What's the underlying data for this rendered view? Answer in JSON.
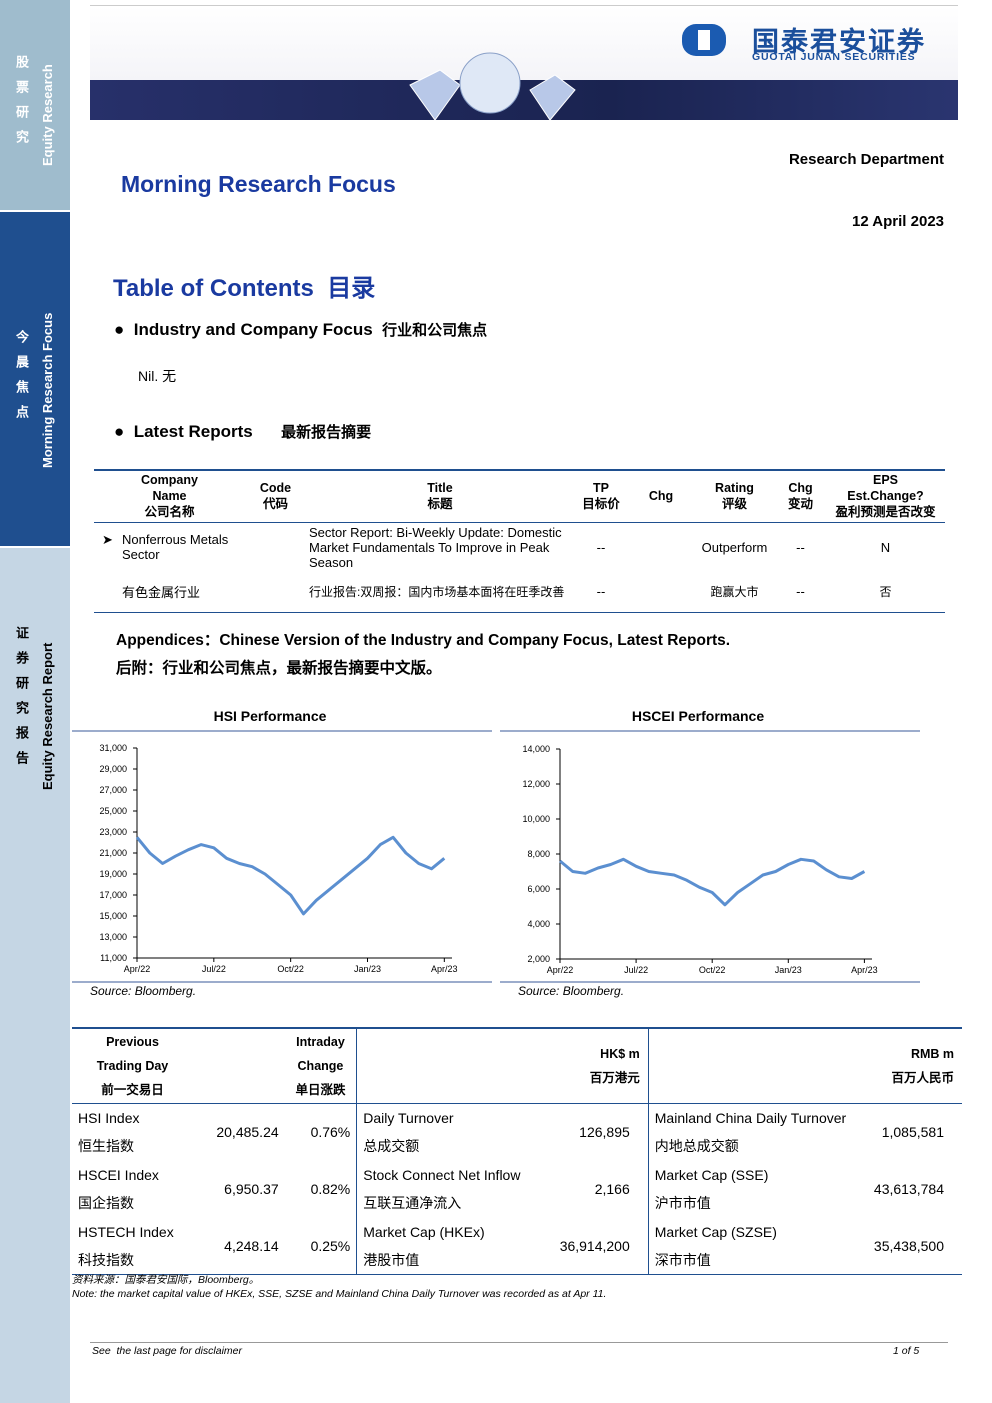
{
  "sidebar": {
    "top_cn": "股票研究",
    "top_en": "Equity Research",
    "mid_cn": "今晨焦点",
    "mid_en": "Morning Research Focus",
    "bottom_cn": "证券研究报告",
    "bottom_en": "Equity Research Report"
  },
  "header": {
    "logo_cn": "国泰君安证券",
    "logo_en": "GUOTAI JUNAN SECURITIES",
    "department": "Research Department",
    "title": "Morning Research Focus",
    "date": "12 April 2023"
  },
  "toc": {
    "title": "Table of Contents",
    "title_cn": "目录",
    "section1": "Industry and Company Focus",
    "section1_cn": "行业和公司焦点",
    "section1_body": "Nil. 无",
    "section2": "Latest Reports",
    "section2_cn": "最新报告摘要"
  },
  "reports_table": {
    "headers": [
      [
        "Company",
        "Name",
        "公司名称"
      ],
      [
        "Code",
        "代码"
      ],
      [
        "Title",
        "标题"
      ],
      [
        "TP",
        "目标价"
      ],
      [
        "Chg"
      ],
      [
        "Rating",
        "评级"
      ],
      [
        "Chg",
        "变动"
      ],
      [
        "EPS",
        "Est.Change?",
        "盈利预测是否改变"
      ]
    ],
    "rows": [
      {
        "company": "Nonferrous Metals Sector",
        "title": "Sector Report: Bi-Weekly Update: Domestic Market Fundamentals To Improve in Peak Season",
        "tp": "--",
        "rating": "Outperform",
        "chg": "--",
        "eps": "N"
      },
      {
        "company": "有色金属行业",
        "title": "行业报告:双周报：国内市场基本面将在旺季改善",
        "tp": "--",
        "rating": "跑赢大市",
        "chg": "--",
        "eps": "否"
      }
    ]
  },
  "appendices": {
    "en": "Appendices：Chinese Version of the Industry and Company Focus, Latest Reports.",
    "cn": "后附：行业和公司焦点，最新报告摘要中文版。"
  },
  "chart_data": [
    {
      "type": "line",
      "title": "HSI Performance",
      "source": "Source: Bloomberg.",
      "color": "#5b8fd0",
      "x": [
        0,
        0.5,
        1,
        1.5,
        2,
        2.5,
        3,
        3.5,
        4,
        4.5,
        5,
        5.5,
        6,
        6.5,
        7,
        7.5,
        8,
        8.5,
        9,
        9.5,
        10,
        10.5,
        11,
        11.5,
        12
      ],
      "values": [
        22500,
        21000,
        20000,
        20700,
        21300,
        21800,
        21500,
        20500,
        20000,
        19700,
        19000,
        18000,
        17000,
        15200,
        16500,
        17500,
        18500,
        19500,
        20500,
        21800,
        22500,
        21000,
        20000,
        19500,
        20500
      ],
      "xlim": [
        0,
        12.3
      ],
      "xticks": [
        {
          "value": 0,
          "label": "Apr/22"
        },
        {
          "value": 3,
          "label": "Jul/22"
        },
        {
          "value": 6,
          "label": "Oct/22"
        },
        {
          "value": 9,
          "label": "Jan/23"
        },
        {
          "value": 12,
          "label": "Apr/23"
        }
      ],
      "ylim": [
        11000,
        31000
      ],
      "yticks": [
        {
          "value": 11000,
          "label": "11,000"
        },
        {
          "value": 13000,
          "label": "13,000"
        },
        {
          "value": 15000,
          "label": "15,000"
        },
        {
          "value": 17000,
          "label": "17,000"
        },
        {
          "value": 19000,
          "label": "19,000"
        },
        {
          "value": 21000,
          "label": "21,000"
        },
        {
          "value": 23000,
          "label": "23,000"
        },
        {
          "value": 25000,
          "label": "25,000"
        },
        {
          "value": 27000,
          "label": "27,000"
        },
        {
          "value": 29000,
          "label": "29,000"
        },
        {
          "value": 31000,
          "label": "31,000"
        }
      ]
    },
    {
      "type": "line",
      "title": "HSCEI Performance",
      "source": "Source: Bloomberg.",
      "color": "#5b8fd0",
      "x": [
        0,
        0.5,
        1,
        1.5,
        2,
        2.5,
        3,
        3.5,
        4,
        4.5,
        5,
        5.5,
        6,
        6.5,
        7,
        7.5,
        8,
        8.5,
        9,
        9.5,
        10,
        10.5,
        11,
        11.5,
        12
      ],
      "values": [
        7600,
        7000,
        6900,
        7200,
        7400,
        7700,
        7300,
        7000,
        6900,
        6800,
        6500,
        6100,
        5800,
        5100,
        5800,
        6300,
        6800,
        7000,
        7400,
        7700,
        7600,
        7100,
        6700,
        6600,
        7000
      ],
      "xlim": [
        0,
        12.3
      ],
      "xticks": [
        {
          "value": 0,
          "label": "Apr/22"
        },
        {
          "value": 3,
          "label": "Jul/22"
        },
        {
          "value": 6,
          "label": "Oct/22"
        },
        {
          "value": 9,
          "label": "Jan/23"
        },
        {
          "value": 12,
          "label": "Apr/23"
        }
      ],
      "ylim": [
        2000,
        14000
      ],
      "yticks": [
        {
          "value": 2000,
          "label": "2,000"
        },
        {
          "value": 4000,
          "label": "4,000"
        },
        {
          "value": 6000,
          "label": "6,000"
        },
        {
          "value": 8000,
          "label": "8,000"
        },
        {
          "value": 10000,
          "label": "10,000"
        },
        {
          "value": 12000,
          "label": "12,000"
        },
        {
          "value": 14000,
          "label": "14,000"
        }
      ]
    }
  ],
  "market_table": {
    "headers": {
      "col1": [
        "Previous",
        "Trading Day",
        "前一交易日"
      ],
      "col2": [
        "Intraday",
        "Change",
        "单日涨跌"
      ],
      "col3": [
        "HK$ m",
        "百万港元"
      ],
      "col4": [
        "RMB m",
        "百万人民币"
      ]
    },
    "rows": [
      {
        "index_en": "HSI Index",
        "index_cn": "恒生指数",
        "close": "20,485.24",
        "change": "0.76%",
        "hk_en": "Daily Turnover",
        "hk_cn": "总成交额",
        "hk_value": "126,895",
        "cn_en": "Mainland China Daily Turnover",
        "cn_cn": "内地总成交额",
        "cn_value": "1,085,581"
      },
      {
        "index_en": "HSCEI Index",
        "index_cn": "国企指数",
        "close": "6,950.37",
        "change": "0.82%",
        "hk_en": "Stock Connect Net Inflow",
        "hk_cn": "互联互通净流入",
        "hk_value": "2,166",
        "cn_en": "Market Cap (SSE)",
        "cn_cn": "沪市市值",
        "cn_value": "43,613,784"
      },
      {
        "index_en": "HSTECH Index",
        "index_cn": "科技指数",
        "close": "4,248.14",
        "change": "0.25%",
        "hk_en": "Market Cap (HKEx)",
        "hk_cn": "港股市值",
        "hk_value": "36,914,200",
        "cn_en": "Market Cap (SZSE)",
        "cn_cn": "深市市值",
        "cn_value": "35,438,500"
      }
    ]
  },
  "notes": {
    "source": "资料来源：国泰君安国际，Bloomberg。",
    "note": "Note: the market capital value of HKEx, SSE, SZSE and Mainland China Daily Turnover was recorded as at Apr 11."
  },
  "footer": {
    "disclaimer": "See  the last page for disclaimer",
    "page": "1 of 5"
  }
}
